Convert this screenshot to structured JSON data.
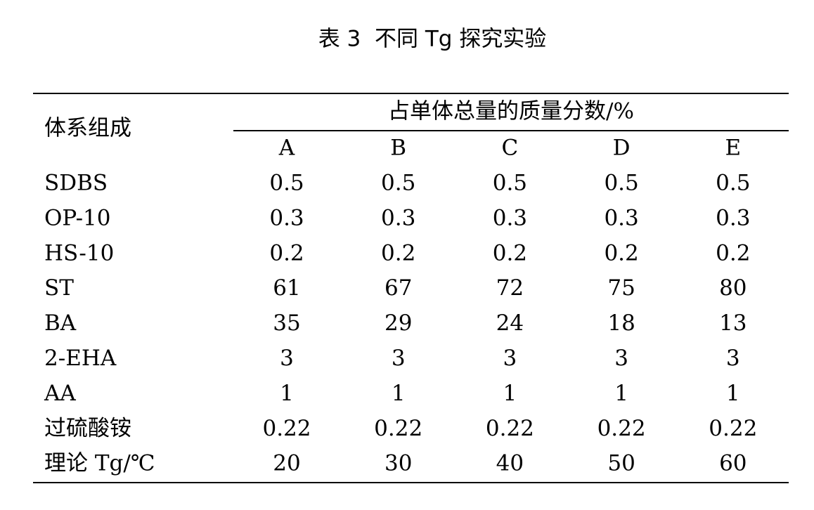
{
  "title": "表 3  不同 Tg 探究实验",
  "table": {
    "row_header": "体系组成",
    "group_header": "占单体总量的质量分数/%",
    "columns": [
      "A",
      "B",
      "C",
      "D",
      "E"
    ],
    "rows": [
      {
        "label": "SDBS",
        "values": [
          0.5,
          0.5,
          0.5,
          0.5,
          0.5
        ]
      },
      {
        "label": "OP-10",
        "values": [
          0.3,
          0.3,
          0.3,
          0.3,
          0.3
        ]
      },
      {
        "label": "HS-10",
        "values": [
          0.2,
          0.2,
          0.2,
          0.2,
          0.2
        ]
      },
      {
        "label": "ST",
        "values": [
          61,
          67,
          72,
          75,
          80
        ]
      },
      {
        "label": "BA",
        "values": [
          35,
          29,
          24,
          18,
          13
        ]
      },
      {
        "label": "2-EHA",
        "values": [
          3,
          3,
          3,
          3,
          3
        ]
      },
      {
        "label": "AA",
        "values": [
          1,
          1,
          1,
          1,
          1
        ]
      },
      {
        "label": "过硫酸铵",
        "values": [
          0.22,
          0.22,
          0.22,
          0.22,
          0.22
        ]
      },
      {
        "label": "理论 Tg/℃",
        "values": [
          20,
          30,
          40,
          50,
          60
        ]
      }
    ]
  }
}
